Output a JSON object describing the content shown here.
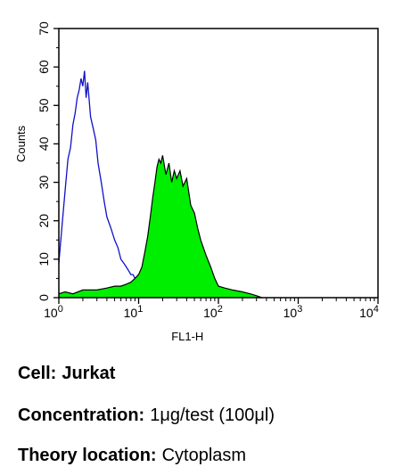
{
  "chart_data": {
    "type": "area",
    "x_scale": "log",
    "xlim": [
      1,
      10000
    ],
    "ylim": [
      0,
      70
    ],
    "xlabel": "FL1-H",
    "ylabel": "Counts",
    "x_ticks": [
      {
        "base": "10",
        "exp": "0"
      },
      {
        "base": "10",
        "exp": "1"
      },
      {
        "base": "10",
        "exp": "2"
      },
      {
        "base": "10",
        "exp": "3"
      },
      {
        "base": "10",
        "exp": "4"
      }
    ],
    "y_ticks": [
      "0",
      "10",
      "20",
      "30",
      "40",
      "50",
      "60",
      "70"
    ],
    "y_tick_values": [
      0,
      10,
      20,
      30,
      40,
      50,
      60,
      70
    ],
    "grid": false,
    "series": [
      {
        "style": "outline",
        "color": "#1010c8",
        "x": [
          1.0,
          1.1,
          1.2,
          1.3,
          1.4,
          1.5,
          1.6,
          1.7,
          1.8,
          1.9,
          2.0,
          2.1,
          2.2,
          2.3,
          2.5,
          2.7,
          2.9,
          3.1,
          3.4,
          3.7,
          4.0,
          4.5,
          5.0,
          5.5,
          6.0,
          6.5,
          7.0,
          7.5,
          8.0,
          8.5,
          9.0,
          9.5,
          10.0,
          11.0,
          12.0,
          14.0,
          17.0,
          22.0,
          30.0
        ],
        "values": [
          9,
          19,
          28,
          36,
          39,
          45,
          48,
          52,
          54,
          57,
          55,
          59,
          52,
          56,
          47,
          44,
          41,
          35,
          30,
          25,
          21,
          18,
          15,
          13,
          10,
          9,
          8,
          7,
          6,
          6,
          5,
          5,
          4,
          3,
          3,
          2,
          1,
          0.5,
          0
        ]
      },
      {
        "style": "filled",
        "color": "#00ee00",
        "x": [
          1.0,
          1.2,
          1.5,
          2.0,
          3.0,
          4.0,
          5.0,
          6.0,
          7.0,
          8.0,
          9.0,
          10.0,
          11.0,
          12.0,
          13.0,
          14.0,
          15.0,
          16.0,
          17.0,
          18.0,
          19.0,
          20.0,
          22.0,
          24.0,
          26.0,
          28.0,
          30.0,
          33.0,
          36.0,
          40.0,
          45.0,
          50.0,
          55.0,
          60.0,
          70.0,
          80.0,
          90.0,
          100.0,
          120.0,
          150.0,
          200.0,
          250.0,
          300.0,
          350.0
        ],
        "values": [
          1,
          1.5,
          1,
          2,
          2,
          2.5,
          3,
          3,
          3.5,
          4,
          5,
          6,
          8,
          12,
          16,
          21,
          26,
          30,
          34,
          36,
          35,
          37,
          32,
          35,
          30,
          33,
          31,
          33,
          29,
          31,
          24,
          22,
          18,
          15,
          11,
          8,
          5,
          3,
          2.5,
          2,
          1.5,
          1,
          0.5,
          0
        ]
      }
    ]
  },
  "info": {
    "cell_label": "Cell:",
    "cell_value": "Jurkat",
    "conc_label": "Concentration:",
    "conc_value": "1μg/test (100μl)",
    "theory_label": "Theory location:",
    "theory_value": "Cytoplasm"
  }
}
